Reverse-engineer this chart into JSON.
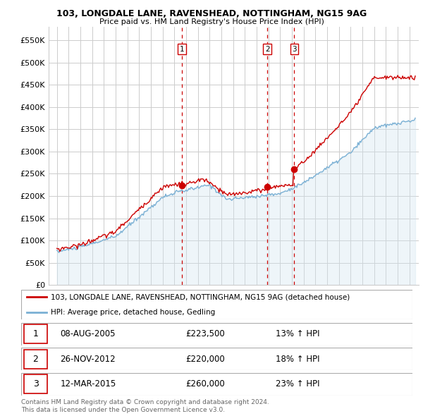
{
  "title1": "103, LONGDALE LANE, RAVENSHEAD, NOTTINGHAM, NG15 9AG",
  "title2": "Price paid vs. HM Land Registry's House Price Index (HPI)",
  "ylabel_ticks": [
    "£0",
    "£50K",
    "£100K",
    "£150K",
    "£200K",
    "£250K",
    "£300K",
    "£350K",
    "£400K",
    "£450K",
    "£500K",
    "£550K"
  ],
  "ytick_vals": [
    0,
    50000,
    100000,
    150000,
    200000,
    250000,
    300000,
    350000,
    400000,
    450000,
    500000,
    550000
  ],
  "ylim": [
    0,
    580000
  ],
  "legend_label_red": "103, LONGDALE LANE, RAVENSHEAD, NOTTINGHAM, NG15 9AG (detached house)",
  "legend_label_blue": "HPI: Average price, detached house, Gedling",
  "sale1_date": "08-AUG-2005",
  "sale1_price": 223500,
  "sale1_price_str": "£223,500",
  "sale1_pct": "13%",
  "sale2_date": "26-NOV-2012",
  "sale2_price": 220000,
  "sale2_price_str": "£220,000",
  "sale2_pct": "18%",
  "sale3_date": "12-MAR-2015",
  "sale3_price": 260000,
  "sale3_price_str": "£260,000",
  "sale3_pct": "23%",
  "footer1": "Contains HM Land Registry data © Crown copyright and database right 2024.",
  "footer2": "This data is licensed under the Open Government Licence v3.0.",
  "red_color": "#cc0000",
  "blue_color": "#7ab0d4",
  "blue_fill_color": "#d0e4f0",
  "vline_color": "#cc0000",
  "grid_color": "#cccccc",
  "bg_color": "#ffffff",
  "sale1_year": 2005.625,
  "sale2_year": 2012.917,
  "sale3_year": 2015.208
}
